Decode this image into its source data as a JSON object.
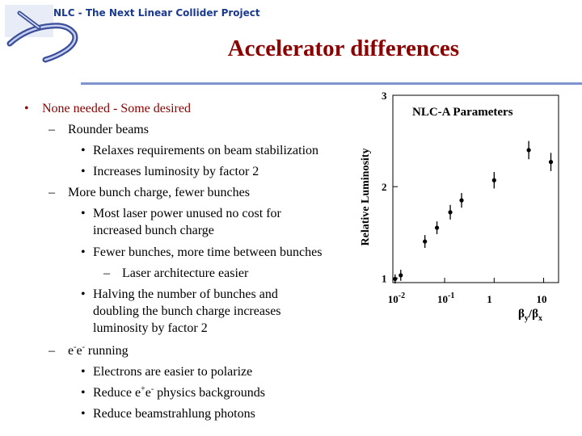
{
  "header": {
    "project_title": "NLC - The Next Linear Collider Project",
    "slide_title": "Accelerator differences",
    "accent_color": "#8b0000",
    "header_color": "#1a3a8f"
  },
  "bullets": {
    "b1": "None needed - Some desired",
    "b2": "Rounder beams",
    "b3": "Relaxes requirements on beam stabilization",
    "b4": "Increases luminosity by factor 2",
    "b5": "More bunch charge, fewer bunches",
    "b6_l1": "Most laser power unused no cost for",
    "b6_l2": "increased bunch charge",
    "b7": "Fewer bunches, more time between bunches",
    "b8": "Laser architecture easier",
    "b9_l1": "Halving the number of bunches and",
    "b9_l2": "doubling the bunch charge increases",
    "b9_l3": "luminosity by factor 2",
    "b10_e1": "e",
    "b10_s1": "-",
    "b10_e2": "e",
    "b10_s2": "-",
    "b10_rest": " running",
    "b11": "Electrons are easier to polarize",
    "b12_pre": "Reduce e",
    "b12_s1": "+",
    "b12_e": "e",
    "b12_s2": "-",
    "b12_post": " physics backgrounds",
    "b13": "Reduce beamstrahlung photons"
  },
  "chart_data": {
    "type": "scatter",
    "title": "NLC-A Parameters",
    "ylabel": "Relative Luminosity",
    "xlabel_main": "β",
    "xlabel_sub1": "y",
    "xlabel_slash": "/β",
    "xlabel_sub2": "x",
    "x_scale": "log",
    "xlim": [
      0.009,
      20
    ],
    "ylim": [
      0.95,
      3.0
    ],
    "yticks": [
      {
        "value": 1,
        "label": "1"
      },
      {
        "value": 2,
        "label": "2"
      },
      {
        "value": 3,
        "label": "3"
      }
    ],
    "xticks": [
      {
        "value": 0.01,
        "base": "10",
        "exp": "-2"
      },
      {
        "value": 0.1,
        "base": "10",
        "exp": "-1"
      },
      {
        "value": 1,
        "base": "1",
        "exp": ""
      },
      {
        "value": 10,
        "base": "10",
        "exp": ""
      }
    ],
    "points": [
      {
        "x": 0.01,
        "y": 0.99,
        "err": 0.05
      },
      {
        "x": 0.013,
        "y": 1.03,
        "err": 0.06
      },
      {
        "x": 0.04,
        "y": 1.4,
        "err": 0.07
      },
      {
        "x": 0.07,
        "y": 1.55,
        "err": 0.07
      },
      {
        "x": 0.13,
        "y": 1.72,
        "err": 0.08
      },
      {
        "x": 0.22,
        "y": 1.85,
        "err": 0.08
      },
      {
        "x": 1.0,
        "y": 2.07,
        "err": 0.09
      },
      {
        "x": 5.0,
        "y": 2.4,
        "err": 0.1
      },
      {
        "x": 14.0,
        "y": 2.27,
        "err": 0.1
      }
    ],
    "grid": false,
    "legend": "none"
  }
}
